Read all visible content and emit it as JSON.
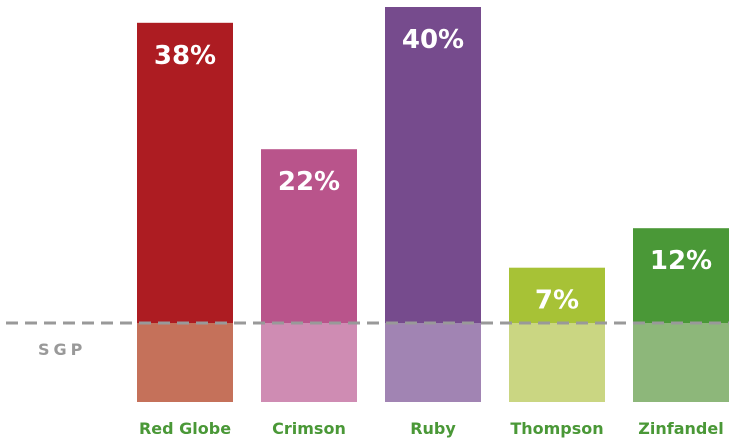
{
  "chart_data": {
    "type": "bar",
    "categories": [
      "Red Globe",
      "Crimson",
      "Ruby",
      "Thompson",
      "Zinfandel"
    ],
    "values": [
      38,
      22,
      40,
      7,
      12
    ],
    "value_labels": [
      "38%",
      "22%",
      "40%",
      "7%",
      "12%"
    ],
    "unit": "%",
    "ylim": [
      -10,
      40
    ],
    "grid": false,
    "legend": "none",
    "baseline": {
      "label": "SGP",
      "value": 0,
      "style": "dashed",
      "color": "#999999"
    },
    "colors": {
      "top": [
        "#ad1c22",
        "#b9548b",
        "#764b8d",
        "#a7c236",
        "#4a9837"
      ],
      "bottom": [
        "#c5715a",
        "#cf8cb3",
        "#a184b3",
        "#cad682",
        "#8db77a"
      ],
      "category_text": "#4a9837"
    }
  }
}
